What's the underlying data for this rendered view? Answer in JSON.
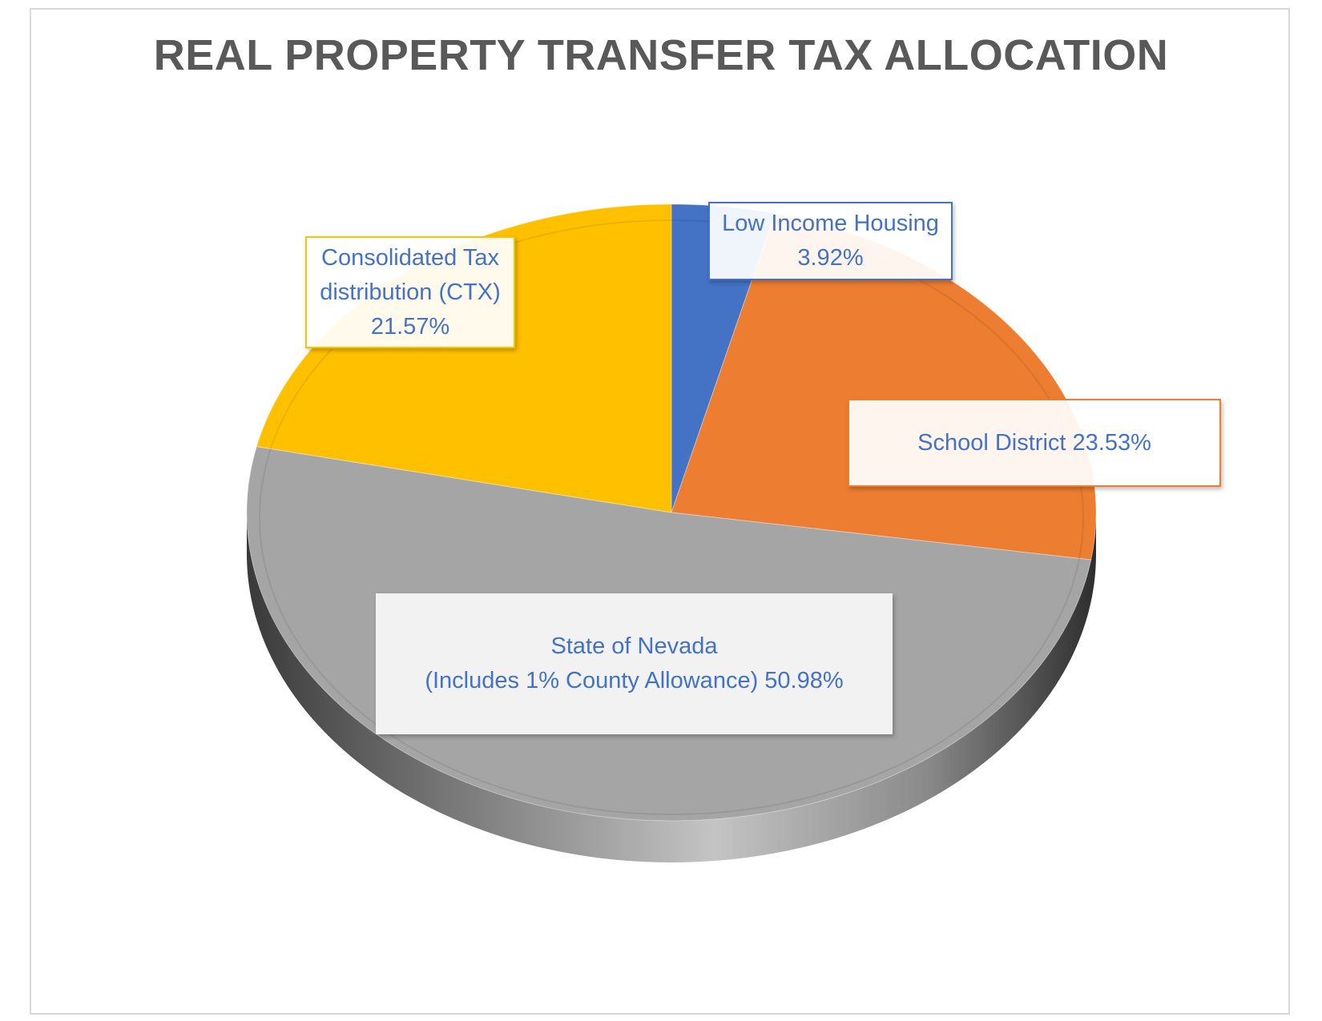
{
  "chart_data": {
    "type": "pie",
    "title": "REAL PROPERTY TRANSFER TAX ALLOCATION",
    "slices": [
      {
        "label": "Low Income Housing",
        "value": 3.92,
        "color": "#4472c4"
      },
      {
        "label": "School District",
        "value": 23.53,
        "color": "#ed7d31"
      },
      {
        "label": "State of Nevada (Includes 1% County Allowance)",
        "value": 50.98,
        "color": "#a5a5a5"
      },
      {
        "label": "Consolidated Tax distribution (CTX)",
        "value": 21.57,
        "color": "#ffc000"
      }
    ],
    "data_labels": {
      "lih": {
        "line1": "Low Income Housing",
        "line2": "3.92%"
      },
      "sd": {
        "line1": "School District 23.53%"
      },
      "nv": {
        "line1": "State of Nevada",
        "line2": "(Includes 1% County Allowance) 50.98%"
      },
      "ctx": {
        "line1": "Consolidated Tax",
        "line2": "distribution (CTX)",
        "line3": "21.57%"
      }
    },
    "style": "3d-pie",
    "legend": "none"
  }
}
